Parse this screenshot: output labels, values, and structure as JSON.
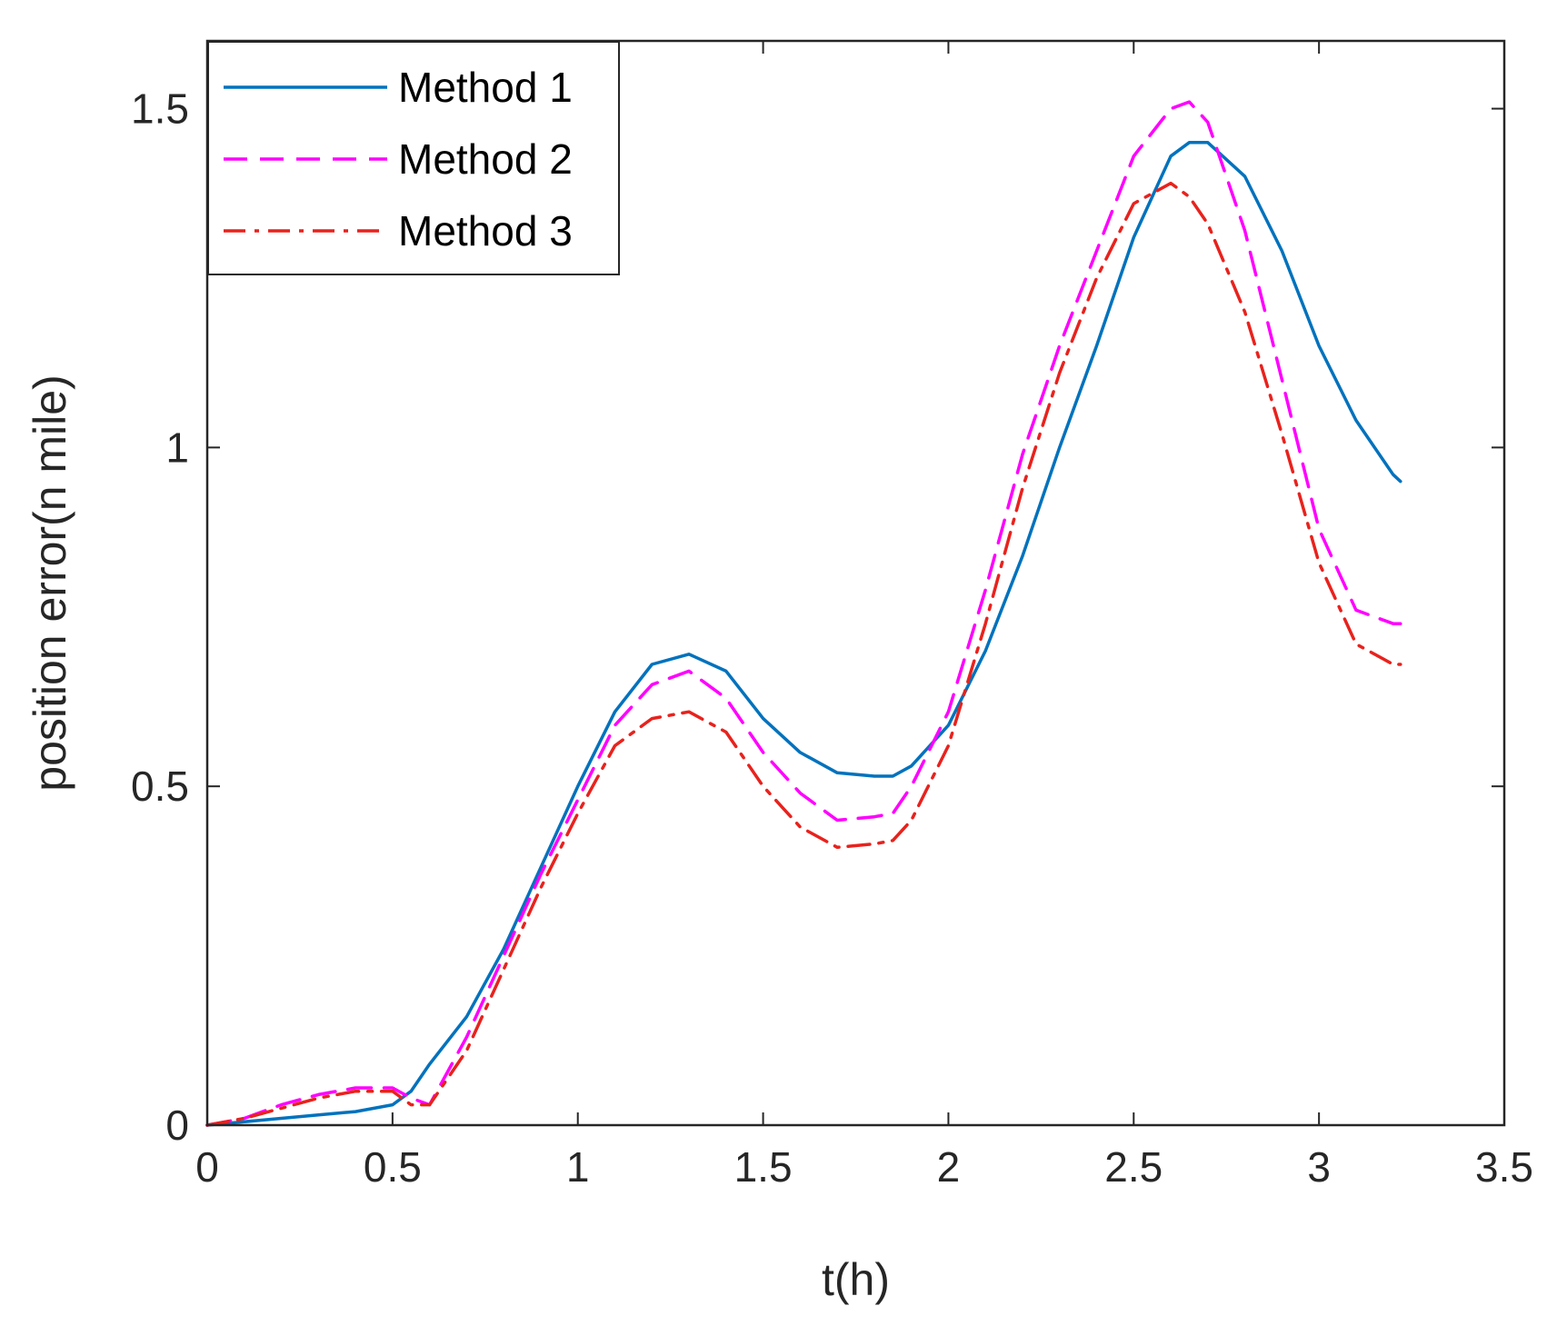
{
  "chart_data": {
    "type": "line",
    "title": "",
    "xlabel": "t(h)",
    "ylabel": "position error(n mile)",
    "xlim": [
      0,
      3.5
    ],
    "ylim": [
      0,
      1.6
    ],
    "xticks": [
      "0",
      "0.5",
      "1",
      "1.5",
      "2",
      "2.5",
      "3",
      "3.5"
    ],
    "yticks": [
      "0",
      "0.5",
      "1",
      "1.5"
    ],
    "grid": false,
    "legend_position": "top-left",
    "x": [
      0,
      0.1,
      0.2,
      0.3,
      0.4,
      0.5,
      0.55,
      0.6,
      0.7,
      0.8,
      0.9,
      1.0,
      1.1,
      1.2,
      1.3,
      1.4,
      1.5,
      1.6,
      1.7,
      1.8,
      1.85,
      1.9,
      2.0,
      2.1,
      2.2,
      2.3,
      2.4,
      2.5,
      2.6,
      2.65,
      2.7,
      2.8,
      2.9,
      3.0,
      3.1,
      3.2,
      3.22
    ],
    "series": [
      {
        "name": "Method 1",
        "color": "#0072BD",
        "dash": "solid",
        "values": [
          0,
          0.005,
          0.01,
          0.015,
          0.02,
          0.03,
          0.05,
          0.09,
          0.16,
          0.26,
          0.38,
          0.5,
          0.61,
          0.68,
          0.695,
          0.67,
          0.6,
          0.55,
          0.52,
          0.515,
          0.515,
          0.53,
          0.59,
          0.7,
          0.84,
          1.0,
          1.15,
          1.31,
          1.43,
          1.45,
          1.45,
          1.4,
          1.29,
          1.15,
          1.04,
          0.96,
          0.95
        ]
      },
      {
        "name": "Method 2",
        "color": "#FF00FF",
        "dash": "dashed",
        "values": [
          0,
          0.01,
          0.03,
          0.045,
          0.055,
          0.055,
          0.04,
          0.03,
          0.13,
          0.25,
          0.37,
          0.48,
          0.59,
          0.65,
          0.67,
          0.63,
          0.55,
          0.49,
          0.45,
          0.455,
          0.46,
          0.5,
          0.61,
          0.79,
          0.99,
          1.15,
          1.29,
          1.43,
          1.5,
          1.51,
          1.48,
          1.32,
          1.1,
          0.88,
          0.76,
          0.74,
          0.74
        ]
      },
      {
        "name": "Method 3",
        "color": "#E8221D",
        "dash": "dashdot",
        "values": [
          0,
          0.01,
          0.025,
          0.04,
          0.05,
          0.05,
          0.03,
          0.03,
          0.11,
          0.23,
          0.35,
          0.46,
          0.56,
          0.6,
          0.61,
          0.58,
          0.5,
          0.44,
          0.41,
          0.415,
          0.42,
          0.45,
          0.56,
          0.74,
          0.94,
          1.11,
          1.25,
          1.36,
          1.39,
          1.37,
          1.33,
          1.2,
          1.02,
          0.83,
          0.71,
          0.68,
          0.68
        ]
      }
    ]
  }
}
